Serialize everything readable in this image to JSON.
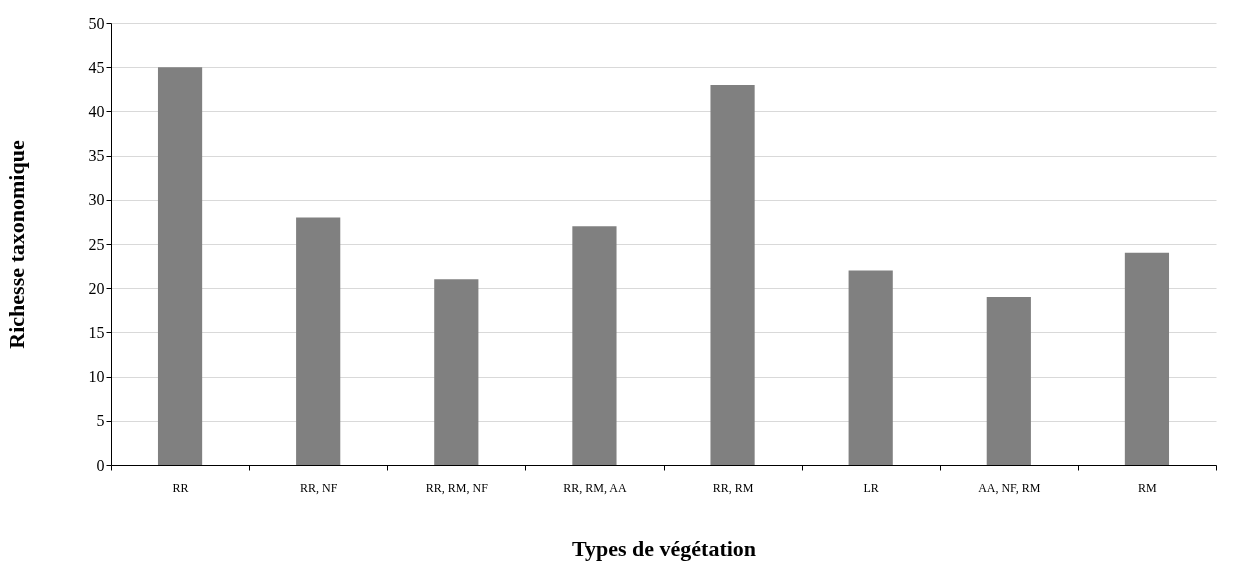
{
  "chart_data": {
    "type": "bar",
    "xlabel": "Types de végétation",
    "ylabel": "Richesse taxonomique",
    "categories": [
      "RR",
      "RR, NF",
      "RR, RM, NF",
      "RR, RM, AA",
      "RR, RM",
      "LR",
      "AA, NF, RM",
      "RM"
    ],
    "values": [
      45,
      28,
      21,
      27,
      43,
      22,
      19,
      24
    ],
    "color": "#808080",
    "ylim": [
      0,
      50
    ],
    "yticks": [
      0,
      5,
      10,
      15,
      20,
      25,
      30,
      35,
      40,
      45,
      50
    ],
    "grid": "y"
  }
}
